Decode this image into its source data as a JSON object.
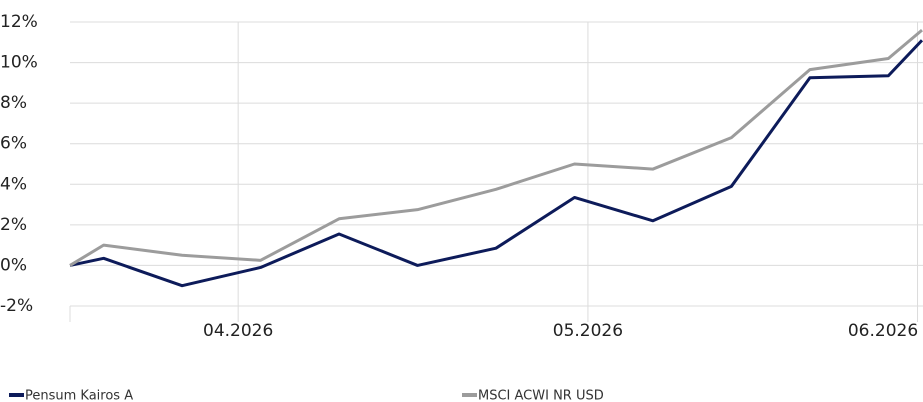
{
  "chart_data": {
    "type": "line",
    "x": [
      0,
      3,
      10,
      17,
      24,
      31,
      38,
      45,
      52,
      59,
      66,
      73,
      76
    ],
    "xlim": [
      0,
      76
    ],
    "xticks": [
      {
        "value": 15,
        "label": "04.2026"
      },
      {
        "value": 46.2,
        "label": "05.2026"
      },
      {
        "value": 75.6,
        "label": "06.2026"
      }
    ],
    "ylim": [
      -2,
      12
    ],
    "yticks": [
      {
        "value": -2,
        "label": "-2%"
      },
      {
        "value": 0,
        "label": "0%"
      },
      {
        "value": 2,
        "label": "2%"
      },
      {
        "value": 4,
        "label": "4%"
      },
      {
        "value": 6,
        "label": "6%"
      },
      {
        "value": 8,
        "label": "8%"
      },
      {
        "value": 10,
        "label": "10%"
      },
      {
        "value": 12,
        "label": "12%"
      }
    ],
    "grid": true,
    "legend": "bottom",
    "series": [
      {
        "name": "Pensum Kairos A",
        "color": "#0d1b5a",
        "values": [
          0,
          0.35,
          -1.0,
          -0.1,
          1.55,
          0,
          0.85,
          3.35,
          2.2,
          3.9,
          9.25,
          9.35,
          11.1
        ]
      },
      {
        "name": "MSCI ACWI NR USD",
        "color": "#9c9c9c",
        "values": [
          0,
          1.0,
          0.5,
          0.25,
          2.3,
          2.75,
          3.75,
          5.0,
          4.75,
          6.3,
          9.65,
          10.2,
          11.6
        ]
      }
    ]
  }
}
